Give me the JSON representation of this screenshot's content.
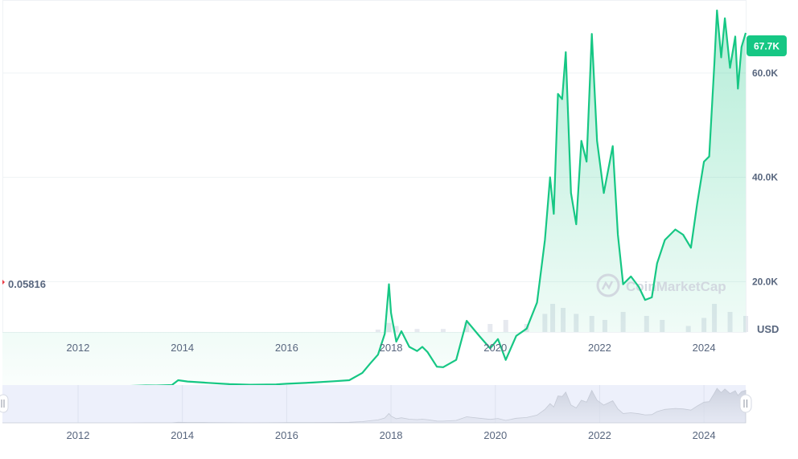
{
  "chart_data": {
    "type": "area",
    "title": "",
    "xlabel": "",
    "ylabel": "",
    "unit_label": "USD",
    "watermark": "CoinMarketCap",
    "start_value_label": "0.05816",
    "current_price_label": "67.7K",
    "current_price": 67700,
    "y_ticks": [
      {
        "value": 20000,
        "label": "20.0K"
      },
      {
        "value": 40000,
        "label": "40.0K"
      },
      {
        "value": 60000,
        "label": "60.0K"
      }
    ],
    "x_ticks": [
      {
        "value": 2012,
        "label": "2012"
      },
      {
        "value": 2014,
        "label": "2014"
      },
      {
        "value": 2016,
        "label": "2016"
      },
      {
        "value": 2018,
        "label": "2018"
      },
      {
        "value": 2020,
        "label": "2020"
      },
      {
        "value": 2022,
        "label": "2022"
      },
      {
        "value": 2024,
        "label": "2024"
      }
    ],
    "xlim": [
      2010.55,
      2024.8
    ],
    "ylim": [
      -14000,
      74000
    ],
    "grid": true,
    "colors": {
      "line": "#16c784",
      "early_line": "#ea3943",
      "area_top": "#16c784",
      "volume": "#e3e6ec",
      "badge": "#16c784",
      "navigator_bg": "#edf0fb"
    },
    "series": [
      {
        "values": [
          [
            2010.55,
            0.06
          ],
          [
            2011.0,
            0.3
          ],
          [
            2011.45,
            15
          ],
          [
            2012.0,
            5
          ],
          [
            2012.5,
            8
          ],
          [
            2013.0,
            13
          ],
          [
            2013.3,
            100
          ],
          [
            2013.5,
            90
          ],
          [
            2013.8,
            180
          ],
          [
            2013.92,
            1100
          ],
          [
            2014.1,
            850
          ],
          [
            2014.5,
            600
          ],
          [
            2014.9,
            350
          ],
          [
            2015.3,
            240
          ],
          [
            2015.8,
            300
          ],
          [
            2016.0,
            420
          ],
          [
            2016.5,
            650
          ],
          [
            2016.9,
            900
          ],
          [
            2017.2,
            1100
          ],
          [
            2017.45,
            2500
          ],
          [
            2017.6,
            4300
          ],
          [
            2017.75,
            6000
          ],
          [
            2017.88,
            10000
          ],
          [
            2017.96,
            19500
          ],
          [
            2018.0,
            14000
          ],
          [
            2018.1,
            8500
          ],
          [
            2018.2,
            10500
          ],
          [
            2018.35,
            7500
          ],
          [
            2018.5,
            6700
          ],
          [
            2018.6,
            7500
          ],
          [
            2018.7,
            6500
          ],
          [
            2018.88,
            3700
          ],
          [
            2019.0,
            3600
          ],
          [
            2019.25,
            5000
          ],
          [
            2019.45,
            12500
          ],
          [
            2019.7,
            9500
          ],
          [
            2019.9,
            7200
          ],
          [
            2020.05,
            9000
          ],
          [
            2020.2,
            5000
          ],
          [
            2020.4,
            9600
          ],
          [
            2020.6,
            11000
          ],
          [
            2020.8,
            16000
          ],
          [
            2020.95,
            28000
          ],
          [
            2021.05,
            40000
          ],
          [
            2021.12,
            33000
          ],
          [
            2021.2,
            56000
          ],
          [
            2021.28,
            55000
          ],
          [
            2021.35,
            64000
          ],
          [
            2021.45,
            37000
          ],
          [
            2021.55,
            31000
          ],
          [
            2021.65,
            47000
          ],
          [
            2021.75,
            43000
          ],
          [
            2021.85,
            67500
          ],
          [
            2021.95,
            47000
          ],
          [
            2022.08,
            37000
          ],
          [
            2022.25,
            46000
          ],
          [
            2022.35,
            29000
          ],
          [
            2022.45,
            19500
          ],
          [
            2022.6,
            21000
          ],
          [
            2022.75,
            19000
          ],
          [
            2022.87,
            16500
          ],
          [
            2023.0,
            17000
          ],
          [
            2023.1,
            23500
          ],
          [
            2023.25,
            28000
          ],
          [
            2023.45,
            30000
          ],
          [
            2023.6,
            29000
          ],
          [
            2023.75,
            26500
          ],
          [
            2023.87,
            35000
          ],
          [
            2024.0,
            43000
          ],
          [
            2024.1,
            44000
          ],
          [
            2024.2,
            62000
          ],
          [
            2024.25,
            72000
          ],
          [
            2024.33,
            63000
          ],
          [
            2024.4,
            70500
          ],
          [
            2024.5,
            61000
          ],
          [
            2024.6,
            67000
          ],
          [
            2024.65,
            57000
          ],
          [
            2024.72,
            65000
          ],
          [
            2024.8,
            67700
          ]
        ]
      }
    ],
    "volume": [
      [
        2017.75,
        1.2
      ],
      [
        2017.96,
        4.5
      ],
      [
        2018.1,
        3
      ],
      [
        2018.5,
        1.5
      ],
      [
        2019.0,
        1.5
      ],
      [
        2019.45,
        5
      ],
      [
        2019.9,
        4
      ],
      [
        2020.2,
        6
      ],
      [
        2020.6,
        4
      ],
      [
        2020.95,
        9
      ],
      [
        2021.1,
        14
      ],
      [
        2021.3,
        12
      ],
      [
        2021.55,
        9
      ],
      [
        2021.85,
        8
      ],
      [
        2022.1,
        6
      ],
      [
        2022.45,
        10
      ],
      [
        2022.9,
        8
      ],
      [
        2023.2,
        6
      ],
      [
        2023.7,
        3
      ],
      [
        2024.0,
        7
      ],
      [
        2024.2,
        14
      ],
      [
        2024.5,
        10
      ],
      [
        2024.8,
        8
      ]
    ],
    "volume_max": 20
  }
}
